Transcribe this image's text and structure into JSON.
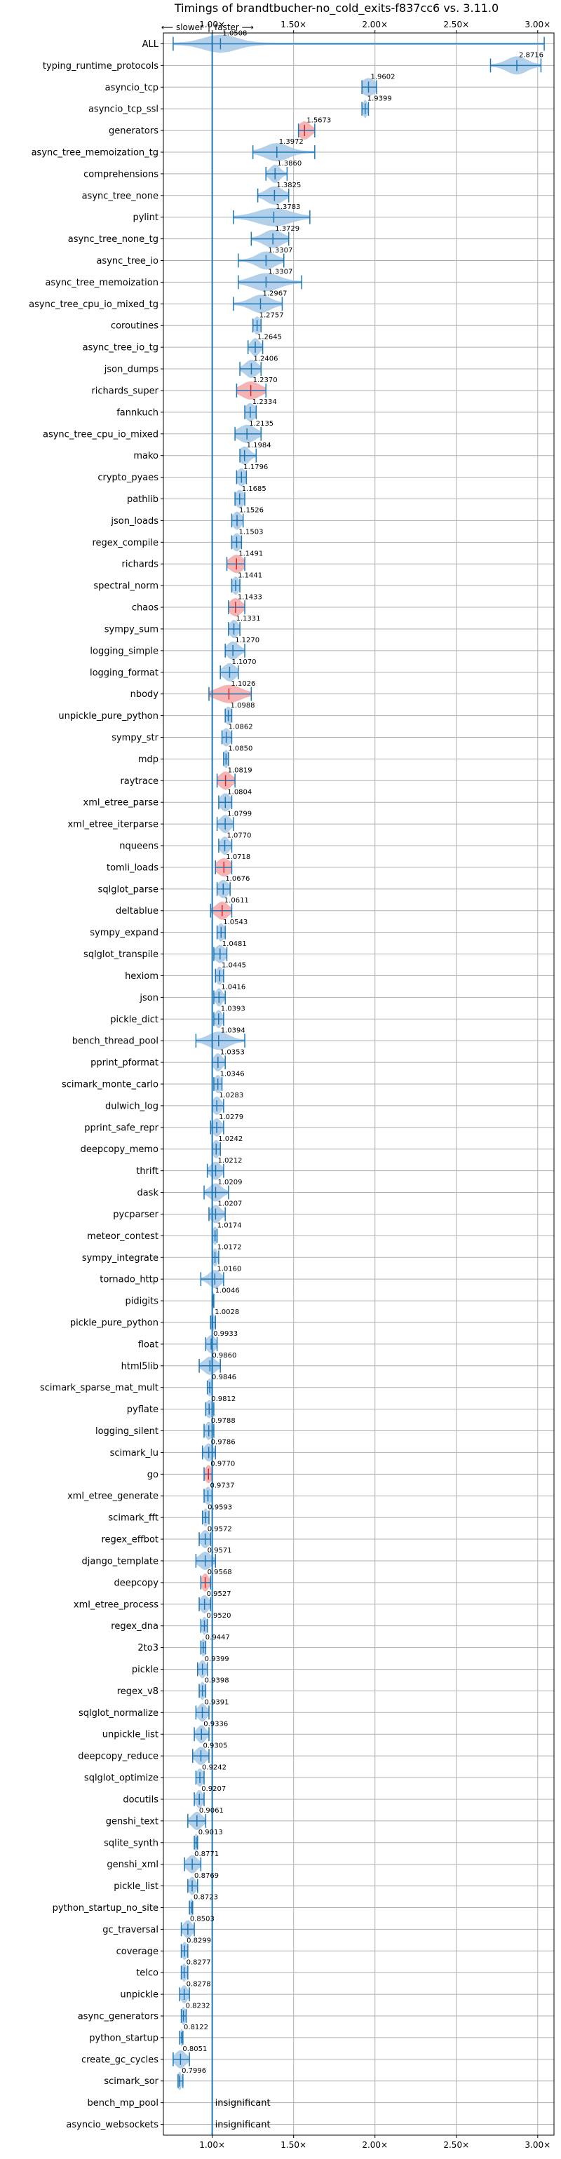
{
  "chart_data": {
    "type": "violin",
    "title": "Timings of brandtbucher-no_cold_exits-f837cc6 vs. 3.11.0",
    "direction_labels": {
      "slower": "⟵ slower",
      "separator": "|",
      "faster": "faster ⟶"
    },
    "xlim": [
      0.7,
      3.1
    ],
    "x_ticks": [
      {
        "value": 1.0,
        "label": "1.00×"
      },
      {
        "value": 1.5,
        "label": "1.50×"
      },
      {
        "value": 2.0,
        "label": "2.00×"
      },
      {
        "value": 2.5,
        "label": "2.50×"
      },
      {
        "value": 3.0,
        "label": "3.00×"
      }
    ],
    "reference_line": 1.0,
    "colors": {
      "normal": "#1f77b4",
      "fill": "#a6c8e8",
      "highlight": "#d62728",
      "highlight_fill": "#f4a6a6"
    },
    "benchmarks": [
      {
        "name": "ALL",
        "value": 1.0508,
        "label": "1.0508",
        "min": 0.76,
        "max": 3.04,
        "spread": 0.1,
        "style": "normal"
      },
      {
        "name": "typing_runtime_protocols",
        "value": 2.8716,
        "label": "2.8716",
        "min": 2.71,
        "max": 3.02,
        "spread": 0.06,
        "style": "normal"
      },
      {
        "name": "asyncio_tcp",
        "value": 1.9602,
        "label": "1.9602",
        "min": 1.92,
        "max": 2.01,
        "spread": 0.04,
        "style": "normal"
      },
      {
        "name": "asyncio_tcp_ssl",
        "value": 1.9399,
        "label": "1.9399",
        "min": 1.92,
        "max": 1.96,
        "spread": 0.012,
        "style": "normal"
      },
      {
        "name": "generators",
        "value": 1.5673,
        "label": "1.5673",
        "min": 1.53,
        "max": 1.63,
        "spread": 0.035,
        "style": "highlight"
      },
      {
        "name": "async_tree_memoization_tg",
        "value": 1.3972,
        "label": "1.3972",
        "min": 1.25,
        "max": 1.63,
        "spread": 0.07,
        "style": "normal"
      },
      {
        "name": "comprehensions",
        "value": 1.386,
        "label": "1.3860",
        "min": 1.33,
        "max": 1.46,
        "spread": 0.03,
        "style": "normal"
      },
      {
        "name": "async_tree_none",
        "value": 1.3825,
        "label": "1.3825",
        "min": 1.28,
        "max": 1.47,
        "spread": 0.05,
        "style": "normal"
      },
      {
        "name": "pylint",
        "value": 1.3783,
        "label": "1.3783",
        "min": 1.13,
        "max": 1.6,
        "spread": 0.1,
        "style": "normal"
      },
      {
        "name": "async_tree_none_tg",
        "value": 1.3729,
        "label": "1.3729",
        "min": 1.24,
        "max": 1.47,
        "spread": 0.055,
        "style": "normal"
      },
      {
        "name": "async_tree_io",
        "value": 1.3307,
        "label": "1.3307",
        "min": 1.16,
        "max": 1.44,
        "spread": 0.055,
        "style": "normal"
      },
      {
        "name": "async_tree_memoization",
        "value": 1.3307,
        "label": "1.3307",
        "min": 1.16,
        "max": 1.55,
        "spread": 0.08,
        "style": "normal"
      },
      {
        "name": "async_tree_cpu_io_mixed_tg",
        "value": 1.2967,
        "label": "1.2967",
        "min": 1.13,
        "max": 1.43,
        "spread": 0.06,
        "style": "normal"
      },
      {
        "name": "coroutines",
        "value": 1.2757,
        "label": "1.2757",
        "min": 1.25,
        "max": 1.3,
        "spread": 0.02,
        "style": "normal"
      },
      {
        "name": "async_tree_io_tg",
        "value": 1.2645,
        "label": "1.2645",
        "min": 1.22,
        "max": 1.31,
        "spread": 0.025,
        "style": "normal"
      },
      {
        "name": "json_dumps",
        "value": 1.2406,
        "label": "1.2406",
        "min": 1.17,
        "max": 1.3,
        "spread": 0.035,
        "style": "normal"
      },
      {
        "name": "richards_super",
        "value": 1.237,
        "label": "1.2370",
        "min": 1.15,
        "max": 1.33,
        "spread": 0.055,
        "style": "highlight"
      },
      {
        "name": "fannkuch",
        "value": 1.2334,
        "label": "1.2334",
        "min": 1.2,
        "max": 1.27,
        "spread": 0.03,
        "style": "normal"
      },
      {
        "name": "async_tree_cpu_io_mixed",
        "value": 1.2135,
        "label": "1.2135",
        "min": 1.14,
        "max": 1.3,
        "spread": 0.05,
        "style": "normal"
      },
      {
        "name": "mako",
        "value": 1.1984,
        "label": "1.1984",
        "min": 1.17,
        "max": 1.27,
        "spread": 0.03,
        "style": "normal"
      },
      {
        "name": "crypto_pyaes",
        "value": 1.1796,
        "label": "1.1796",
        "min": 1.15,
        "max": 1.21,
        "spread": 0.025,
        "style": "normal"
      },
      {
        "name": "pathlib",
        "value": 1.1685,
        "label": "1.1685",
        "min": 1.14,
        "max": 1.2,
        "spread": 0.025,
        "style": "normal"
      },
      {
        "name": "json_loads",
        "value": 1.1526,
        "label": "1.1526",
        "min": 1.12,
        "max": 1.19,
        "spread": 0.025,
        "style": "normal"
      },
      {
        "name": "regex_compile",
        "value": 1.1503,
        "label": "1.1503",
        "min": 1.12,
        "max": 1.18,
        "spread": 0.025,
        "style": "normal"
      },
      {
        "name": "richards",
        "value": 1.1491,
        "label": "1.1491",
        "min": 1.09,
        "max": 1.2,
        "spread": 0.04,
        "style": "highlight"
      },
      {
        "name": "spectral_norm",
        "value": 1.1441,
        "label": "1.1441",
        "min": 1.12,
        "max": 1.17,
        "spread": 0.02,
        "style": "normal"
      },
      {
        "name": "chaos",
        "value": 1.1433,
        "label": "1.1433",
        "min": 1.1,
        "max": 1.2,
        "spread": 0.035,
        "style": "highlight"
      },
      {
        "name": "sympy_sum",
        "value": 1.1331,
        "label": "1.1331",
        "min": 1.1,
        "max": 1.17,
        "spread": 0.025,
        "style": "normal"
      },
      {
        "name": "logging_simple",
        "value": 1.127,
        "label": "1.1270",
        "min": 1.08,
        "max": 1.2,
        "spread": 0.035,
        "style": "normal"
      },
      {
        "name": "logging_format",
        "value": 1.107,
        "label": "1.1070",
        "min": 1.05,
        "max": 1.16,
        "spread": 0.035,
        "style": "normal"
      },
      {
        "name": "nbody",
        "value": 1.1026,
        "label": "1.1026",
        "min": 0.98,
        "max": 1.24,
        "spread": 0.07,
        "style": "highlight"
      },
      {
        "name": "unpickle_pure_python",
        "value": 1.0988,
        "label": "1.0988",
        "min": 1.08,
        "max": 1.12,
        "spread": 0.02,
        "style": "normal"
      },
      {
        "name": "sympy_str",
        "value": 1.0862,
        "label": "1.0862",
        "min": 1.06,
        "max": 1.12,
        "spread": 0.025,
        "style": "normal"
      },
      {
        "name": "mdp",
        "value": 1.085,
        "label": "1.0850",
        "min": 1.07,
        "max": 1.1,
        "spread": 0.015,
        "style": "normal"
      },
      {
        "name": "raytrace",
        "value": 1.0819,
        "label": "1.0819",
        "min": 1.03,
        "max": 1.14,
        "spread": 0.035,
        "style": "highlight"
      },
      {
        "name": "xml_etree_parse",
        "value": 1.0804,
        "label": "1.0804",
        "min": 1.04,
        "max": 1.12,
        "spread": 0.03,
        "style": "normal"
      },
      {
        "name": "xml_etree_iterparse",
        "value": 1.0799,
        "label": "1.0799",
        "min": 1.03,
        "max": 1.13,
        "spread": 0.03,
        "style": "normal"
      },
      {
        "name": "nqueens",
        "value": 1.077,
        "label": "1.0770",
        "min": 1.04,
        "max": 1.12,
        "spread": 0.025,
        "style": "normal"
      },
      {
        "name": "tomli_loads",
        "value": 1.0718,
        "label": "1.0718",
        "min": 1.02,
        "max": 1.12,
        "spread": 0.04,
        "style": "highlight"
      },
      {
        "name": "sqlglot_parse",
        "value": 1.0676,
        "label": "1.0676",
        "min": 1.03,
        "max": 1.11,
        "spread": 0.03,
        "style": "normal"
      },
      {
        "name": "deltablue",
        "value": 1.0611,
        "label": "1.0611",
        "min": 0.99,
        "max": 1.12,
        "spread": 0.035,
        "style": "highlight"
      },
      {
        "name": "sympy_expand",
        "value": 1.0543,
        "label": "1.0543",
        "min": 1.03,
        "max": 1.08,
        "spread": 0.02,
        "style": "normal"
      },
      {
        "name": "sqlglot_transpile",
        "value": 1.0481,
        "label": "1.0481",
        "min": 1.01,
        "max": 1.09,
        "spread": 0.03,
        "style": "normal"
      },
      {
        "name": "hexiom",
        "value": 1.0445,
        "label": "1.0445",
        "min": 1.02,
        "max": 1.07,
        "spread": 0.02,
        "style": "normal"
      },
      {
        "name": "json",
        "value": 1.0416,
        "label": "1.0416",
        "min": 1.01,
        "max": 1.08,
        "spread": 0.02,
        "style": "normal"
      },
      {
        "name": "pickle_dict",
        "value": 1.0393,
        "label": "1.0393",
        "min": 1.01,
        "max": 1.07,
        "spread": 0.02,
        "style": "normal"
      },
      {
        "name": "bench_thread_pool",
        "value": 1.0394,
        "label": "1.0394",
        "min": 0.9,
        "max": 1.2,
        "spread": 0.06,
        "style": "normal"
      },
      {
        "name": "pprint_pformat",
        "value": 1.0353,
        "label": "1.0353",
        "min": 1.0,
        "max": 1.08,
        "spread": 0.025,
        "style": "normal"
      },
      {
        "name": "scimark_monte_carlo",
        "value": 1.0346,
        "label": "1.0346",
        "min": 1.01,
        "max": 1.06,
        "spread": 0.02,
        "style": "normal"
      },
      {
        "name": "dulwich_log",
        "value": 1.0283,
        "label": "1.0283",
        "min": 1.0,
        "max": 1.07,
        "spread": 0.025,
        "style": "normal"
      },
      {
        "name": "pprint_safe_repr",
        "value": 1.0279,
        "label": "1.0279",
        "min": 0.99,
        "max": 1.07,
        "spread": 0.025,
        "style": "normal"
      },
      {
        "name": "deepcopy_memo",
        "value": 1.0242,
        "label": "1.0242",
        "min": 1.0,
        "max": 1.05,
        "spread": 0.02,
        "style": "normal"
      },
      {
        "name": "thrift",
        "value": 1.0212,
        "label": "1.0212",
        "min": 0.97,
        "max": 1.07,
        "spread": 0.03,
        "style": "normal"
      },
      {
        "name": "dask",
        "value": 1.0209,
        "label": "1.0209",
        "min": 0.95,
        "max": 1.1,
        "spread": 0.035,
        "style": "normal"
      },
      {
        "name": "pycparser",
        "value": 1.0207,
        "label": "1.0207",
        "min": 0.98,
        "max": 1.08,
        "spread": 0.03,
        "style": "normal"
      },
      {
        "name": "meteor_contest",
        "value": 1.0174,
        "label": "1.0174",
        "min": 1.0,
        "max": 1.03,
        "spread": 0.015,
        "style": "normal"
      },
      {
        "name": "sympy_integrate",
        "value": 1.0172,
        "label": "1.0172",
        "min": 1.0,
        "max": 1.04,
        "spread": 0.015,
        "style": "normal"
      },
      {
        "name": "tornado_http",
        "value": 1.016,
        "label": "1.0160",
        "min": 0.93,
        "max": 1.07,
        "spread": 0.035,
        "style": "normal"
      },
      {
        "name": "pidigits",
        "value": 1.0046,
        "label": "1.0046",
        "min": 1.0,
        "max": 1.01,
        "spread": 0.006,
        "style": "normal"
      },
      {
        "name": "pickle_pure_python",
        "value": 1.0028,
        "label": "1.0028",
        "min": 0.99,
        "max": 1.02,
        "spread": 0.012,
        "style": "normal"
      },
      {
        "name": "float",
        "value": 0.9933,
        "label": "0.9933",
        "min": 0.96,
        "max": 1.03,
        "spread": 0.025,
        "style": "normal"
      },
      {
        "name": "html5lib",
        "value": 0.986,
        "label": "0.9860",
        "min": 0.92,
        "max": 1.05,
        "spread": 0.035,
        "style": "normal"
      },
      {
        "name": "scimark_sparse_mat_mult",
        "value": 0.9846,
        "label": "0.9846",
        "min": 0.97,
        "max": 1.0,
        "spread": 0.015,
        "style": "normal"
      },
      {
        "name": "pyflate",
        "value": 0.9812,
        "label": "0.9812",
        "min": 0.96,
        "max": 1.01,
        "spread": 0.02,
        "style": "normal"
      },
      {
        "name": "logging_silent",
        "value": 0.9788,
        "label": "0.9788",
        "min": 0.95,
        "max": 1.01,
        "spread": 0.02,
        "style": "normal"
      },
      {
        "name": "scimark_lu",
        "value": 0.9786,
        "label": "0.9786",
        "min": 0.94,
        "max": 1.02,
        "spread": 0.025,
        "style": "normal"
      },
      {
        "name": "go",
        "value": 0.977,
        "label": "0.9770",
        "min": 0.95,
        "max": 1.0,
        "spread": 0.02,
        "style": "highlight"
      },
      {
        "name": "xml_etree_generate",
        "value": 0.9737,
        "label": "0.9737",
        "min": 0.95,
        "max": 1.0,
        "spread": 0.02,
        "style": "normal"
      },
      {
        "name": "scimark_fft",
        "value": 0.9593,
        "label": "0.9593",
        "min": 0.94,
        "max": 0.98,
        "spread": 0.015,
        "style": "normal"
      },
      {
        "name": "regex_effbot",
        "value": 0.9572,
        "label": "0.9572",
        "min": 0.92,
        "max": 0.99,
        "spread": 0.025,
        "style": "normal"
      },
      {
        "name": "django_template",
        "value": 0.9571,
        "label": "0.9571",
        "min": 0.9,
        "max": 1.02,
        "spread": 0.035,
        "style": "normal"
      },
      {
        "name": "deepcopy",
        "value": 0.9568,
        "label": "0.9568",
        "min": 0.93,
        "max": 0.99,
        "spread": 0.02,
        "style": "highlight"
      },
      {
        "name": "xml_etree_process",
        "value": 0.9527,
        "label": "0.9527",
        "min": 0.92,
        "max": 0.99,
        "spread": 0.025,
        "style": "normal"
      },
      {
        "name": "regex_dna",
        "value": 0.952,
        "label": "0.9520",
        "min": 0.93,
        "max": 0.97,
        "spread": 0.015,
        "style": "normal"
      },
      {
        "name": "2to3",
        "value": 0.9447,
        "label": "0.9447",
        "min": 0.93,
        "max": 0.96,
        "spread": 0.012,
        "style": "normal"
      },
      {
        "name": "pickle",
        "value": 0.9399,
        "label": "0.9399",
        "min": 0.91,
        "max": 0.97,
        "spread": 0.02,
        "style": "normal"
      },
      {
        "name": "regex_v8",
        "value": 0.9398,
        "label": "0.9398",
        "min": 0.92,
        "max": 0.96,
        "spread": 0.015,
        "style": "normal"
      },
      {
        "name": "sqlglot_normalize",
        "value": 0.9391,
        "label": "0.9391",
        "min": 0.9,
        "max": 0.98,
        "spread": 0.025,
        "style": "normal"
      },
      {
        "name": "unpickle_list",
        "value": 0.9336,
        "label": "0.9336",
        "min": 0.89,
        "max": 0.98,
        "spread": 0.025,
        "style": "normal"
      },
      {
        "name": "deepcopy_reduce",
        "value": 0.9305,
        "label": "0.9305",
        "min": 0.88,
        "max": 0.98,
        "spread": 0.03,
        "style": "normal"
      },
      {
        "name": "sqlglot_optimize",
        "value": 0.9242,
        "label": "0.9242",
        "min": 0.9,
        "max": 0.95,
        "spread": 0.02,
        "style": "normal"
      },
      {
        "name": "docutils",
        "value": 0.9207,
        "label": "0.9207",
        "min": 0.89,
        "max": 0.95,
        "spread": 0.02,
        "style": "normal"
      },
      {
        "name": "genshi_text",
        "value": 0.9061,
        "label": "0.9061",
        "min": 0.85,
        "max": 0.96,
        "spread": 0.03,
        "style": "normal"
      },
      {
        "name": "sqlite_synth",
        "value": 0.9013,
        "label": "0.9013",
        "min": 0.89,
        "max": 0.91,
        "spread": 0.01,
        "style": "normal"
      },
      {
        "name": "genshi_xml",
        "value": 0.8771,
        "label": "0.8771",
        "min": 0.83,
        "max": 0.93,
        "spread": 0.03,
        "style": "normal"
      },
      {
        "name": "pickle_list",
        "value": 0.8769,
        "label": "0.8769",
        "min": 0.85,
        "max": 0.91,
        "spread": 0.02,
        "style": "normal"
      },
      {
        "name": "python_startup_no_site",
        "value": 0.8723,
        "label": "0.8723",
        "min": 0.86,
        "max": 0.88,
        "spread": 0.01,
        "style": "normal"
      },
      {
        "name": "gc_traversal",
        "value": 0.8503,
        "label": "0.8503",
        "min": 0.81,
        "max": 0.89,
        "spread": 0.025,
        "style": "normal"
      },
      {
        "name": "coverage",
        "value": 0.8299,
        "label": "0.8299",
        "min": 0.81,
        "max": 0.85,
        "spread": 0.015,
        "style": "normal"
      },
      {
        "name": "telco",
        "value": 0.8277,
        "label": "0.8277",
        "min": 0.81,
        "max": 0.85,
        "spread": 0.015,
        "style": "normal"
      },
      {
        "name": "unpickle",
        "value": 0.8278,
        "label": "0.8278",
        "min": 0.8,
        "max": 0.86,
        "spread": 0.02,
        "style": "normal"
      },
      {
        "name": "async_generators",
        "value": 0.8232,
        "label": "0.8232",
        "min": 0.81,
        "max": 0.84,
        "spread": 0.012,
        "style": "normal"
      },
      {
        "name": "python_startup",
        "value": 0.8122,
        "label": "0.8122",
        "min": 0.8,
        "max": 0.82,
        "spread": 0.008,
        "style": "normal"
      },
      {
        "name": "create_gc_cycles",
        "value": 0.8051,
        "label": "0.8051",
        "min": 0.76,
        "max": 0.86,
        "spread": 0.03,
        "style": "normal"
      },
      {
        "name": "scimark_sor",
        "value": 0.7996,
        "label": "0.7996",
        "min": 0.79,
        "max": 0.82,
        "spread": 0.012,
        "style": "normal"
      },
      {
        "name": "bench_mp_pool",
        "value": null,
        "label": "insignificant",
        "style": "insignificant"
      },
      {
        "name": "asyncio_websockets",
        "value": null,
        "label": "insignificant",
        "style": "insignificant"
      }
    ]
  }
}
